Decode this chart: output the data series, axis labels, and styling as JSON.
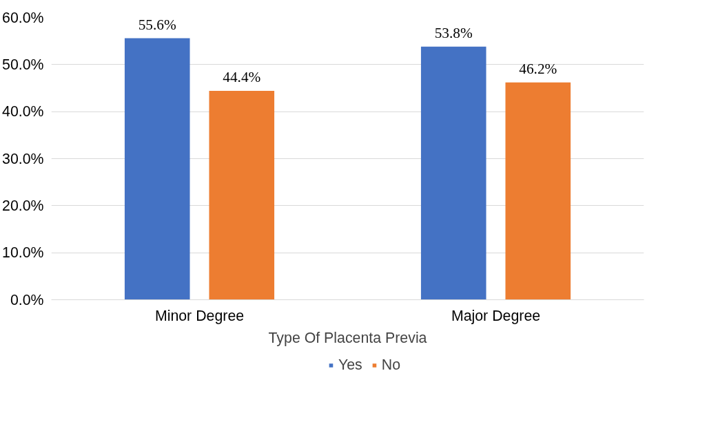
{
  "chart_data": {
    "type": "bar",
    "xlabel": "Type Of Placenta Previa",
    "categories": [
      "Minor Degree",
      "Major Degree"
    ],
    "series": [
      {
        "name": "Yes",
        "color": "#4472c4",
        "values": [
          55.6,
          53.8
        ],
        "value_labels": [
          "55.6%",
          "53.8%"
        ]
      },
      {
        "name": "No",
        "color": "#ed7d31",
        "values": [
          44.4,
          46.2
        ],
        "value_labels": [
          "44.4%",
          "46.2%"
        ]
      }
    ],
    "ylim": [
      0,
      60
    ],
    "yticks": [
      {
        "value": 0,
        "label": "0.0%"
      },
      {
        "value": 10,
        "label": "10.0%"
      },
      {
        "value": 20,
        "label": "20.0%"
      },
      {
        "value": 30,
        "label": "30.0%"
      },
      {
        "value": 40,
        "label": "40.0%"
      },
      {
        "value": 50,
        "label": "50.0%"
      },
      {
        "value": 60,
        "label": "60.0%"
      }
    ],
    "grid": "y",
    "legend": "bottom"
  }
}
